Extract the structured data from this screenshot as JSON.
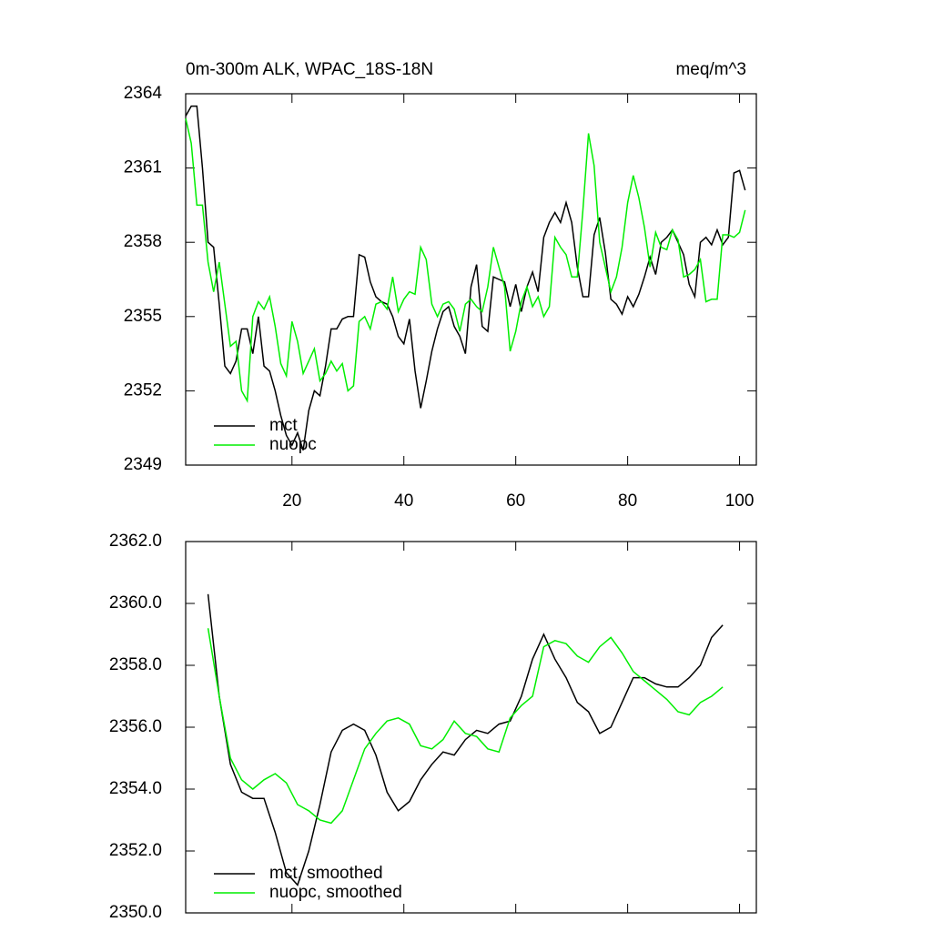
{
  "chart_data": [
    {
      "type": "line",
      "title": "0m-300m ALK, WPAC_18S-18N",
      "units_label": "meq/m^3",
      "x": [
        1,
        2,
        3,
        4,
        5,
        6,
        7,
        8,
        9,
        10,
        11,
        12,
        13,
        14,
        15,
        16,
        17,
        18,
        19,
        20,
        21,
        22,
        23,
        24,
        25,
        26,
        27,
        28,
        29,
        30,
        31,
        32,
        33,
        34,
        35,
        36,
        37,
        38,
        39,
        40,
        41,
        42,
        43,
        44,
        45,
        46,
        47,
        48,
        49,
        50,
        51,
        52,
        53,
        54,
        55,
        56,
        57,
        58,
        59,
        60,
        61,
        62,
        63,
        64,
        65,
        66,
        67,
        68,
        69,
        70,
        71,
        72,
        73,
        74,
        75,
        76,
        77,
        78,
        79,
        80,
        81,
        82,
        83,
        84,
        85,
        86,
        87,
        88,
        89,
        90,
        91,
        92,
        93,
        94,
        95,
        96,
        97,
        98,
        99,
        100,
        101
      ],
      "series": [
        {
          "name": "mct",
          "color": "#000000",
          "values": [
            2363.1,
            2363.5,
            2363.5,
            2361,
            2358,
            2357.8,
            2355.5,
            2353,
            2352.7,
            2353.2,
            2354.5,
            2354.5,
            2353.5,
            2355,
            2353,
            2352.8,
            2352,
            2351,
            2350.2,
            2349.8,
            2350.3,
            2349.6,
            2351.2,
            2352,
            2351.8,
            2353,
            2354.5,
            2354.5,
            2354.9,
            2355,
            2355,
            2357.5,
            2357.4,
            2356.4,
            2355.8,
            2355.6,
            2355.5,
            2355,
            2354.2,
            2353.9,
            2354.9,
            2352.8,
            2351.3,
            2352.4,
            2353.6,
            2354.5,
            2355.2,
            2355.4,
            2354.6,
            2354.2,
            2353.5,
            2356.2,
            2357.1,
            2354.6,
            2354.4,
            2356.6,
            2356.5,
            2356.4,
            2355.4,
            2356.3,
            2355.2,
            2356.2,
            2356.8,
            2356,
            2358.2,
            2358.8,
            2359.2,
            2358.8,
            2359.6,
            2358.8,
            2357,
            2355.8,
            2355.8,
            2358.3,
            2359,
            2357.6,
            2355.7,
            2355.5,
            2355.1,
            2355.8,
            2355.4,
            2355.9,
            2356.6,
            2357.4,
            2356.7,
            2358,
            2358.2,
            2358.5,
            2358,
            2357.5,
            2356.3,
            2355.8,
            2358,
            2358.2,
            2357.9,
            2358.5,
            2357.9,
            2358.2,
            2360.8,
            2360.9,
            2360.1
          ]
        },
        {
          "name": "nuopc",
          "color": "#00ee00",
          "values": [
            2363,
            2362,
            2359.5,
            2359.5,
            2357.2,
            2356,
            2357.2,
            2355.5,
            2353.8,
            2354,
            2352,
            2351.6,
            2355,
            2355.6,
            2355.3,
            2355.8,
            2354.6,
            2353.1,
            2352.6,
            2354.8,
            2354,
            2352.7,
            2353.2,
            2353.7,
            2352.4,
            2352.7,
            2353.2,
            2352.8,
            2353.1,
            2352,
            2352.2,
            2354.8,
            2355,
            2354.5,
            2355.5,
            2355.6,
            2355.3,
            2356.6,
            2355.2,
            2355.7,
            2356,
            2355.9,
            2357.8,
            2357.3,
            2355.5,
            2355,
            2355.5,
            2355.6,
            2355.3,
            2354.4,
            2355.5,
            2355.7,
            2355.4,
            2355.2,
            2356.2,
            2357.8,
            2357,
            2356.2,
            2353.6,
            2354.4,
            2355.6,
            2356.2,
            2355.4,
            2355.8,
            2355,
            2355.4,
            2358.2,
            2357.8,
            2357.5,
            2356.6,
            2356.6,
            2359.3,
            2362.4,
            2361.1,
            2358,
            2357,
            2356,
            2356.6,
            2357.8,
            2359.6,
            2360.7,
            2359.8,
            2358.6,
            2357,
            2358.4,
            2357.8,
            2357.7,
            2358.5,
            2358.1,
            2356.6,
            2356.7,
            2356.9,
            2357.3,
            2355.6,
            2355.7,
            2355.7,
            2358.3,
            2358.3,
            2358.2,
            2358.4,
            2359.3
          ]
        }
      ],
      "xlim": [
        1,
        103
      ],
      "xticks": [
        20,
        40,
        60,
        80,
        100
      ],
      "ylim": [
        2349,
        2364
      ],
      "yticks": [
        2349,
        2352,
        2355,
        2358,
        2361,
        2364
      ],
      "legend": "lower left"
    },
    {
      "type": "line",
      "x": [
        5,
        7,
        9,
        11,
        13,
        15,
        17,
        19,
        21,
        23,
        25,
        27,
        29,
        31,
        33,
        35,
        37,
        39,
        41,
        43,
        45,
        47,
        49,
        51,
        53,
        55,
        57,
        59,
        61,
        63,
        65,
        67,
        69,
        71,
        73,
        75,
        77,
        79,
        81,
        83,
        85,
        87,
        89,
        91,
        93,
        95,
        97
      ],
      "series": [
        {
          "name": "mct, smoothed",
          "color": "#000000",
          "values": [
            2360.3,
            2357,
            2354.8,
            2353.9,
            2353.7,
            2353.7,
            2352.6,
            2351.3,
            2350.9,
            2352,
            2353.5,
            2355.2,
            2355.9,
            2356.1,
            2355.9,
            2355.1,
            2353.9,
            2353.3,
            2353.6,
            2354.3,
            2354.8,
            2355.2,
            2355.1,
            2355.6,
            2355.9,
            2355.8,
            2356.1,
            2356.2,
            2357,
            2358.2,
            2359,
            2358.2,
            2357.6,
            2356.8,
            2356.5,
            2355.8,
            2356,
            2356.8,
            2357.6,
            2357.6,
            2357.4,
            2357.3,
            2357.3,
            2357.6,
            2358,
            2358.9,
            2359.3
          ]
        },
        {
          "name": "nuopc, smoothed",
          "color": "#00ee00",
          "values": [
            2359.2,
            2357,
            2355,
            2354.3,
            2354,
            2354.3,
            2354.5,
            2354.2,
            2353.5,
            2353.3,
            2353,
            2352.9,
            2353.3,
            2354.3,
            2355.3,
            2355.8,
            2356.2,
            2356.3,
            2356.1,
            2355.4,
            2355.3,
            2355.6,
            2356.2,
            2355.8,
            2355.7,
            2355.3,
            2355.2,
            2356.3,
            2356.7,
            2357,
            2358.6,
            2358.8,
            2358.7,
            2358.3,
            2358.1,
            2358.6,
            2358.9,
            2358.4,
            2357.8,
            2357.5,
            2357.2,
            2356.9,
            2356.5,
            2356.4,
            2356.8,
            2357,
            2357.3
          ]
        }
      ],
      "xlim": [
        1,
        103
      ],
      "ylim": [
        2350,
        2362
      ],
      "yticks": [
        {
          "value": 2350,
          "label": "2350.0"
        },
        {
          "value": 2352,
          "label": "2352.0"
        },
        {
          "value": 2354,
          "label": "2354.0"
        },
        {
          "value": 2356,
          "label": "2356.0"
        },
        {
          "value": 2358,
          "label": "2358.0"
        },
        {
          "value": 2360,
          "label": "2360.0"
        },
        {
          "value": 2362,
          "label": "2362.0"
        }
      ],
      "legend": "lower left"
    }
  ]
}
